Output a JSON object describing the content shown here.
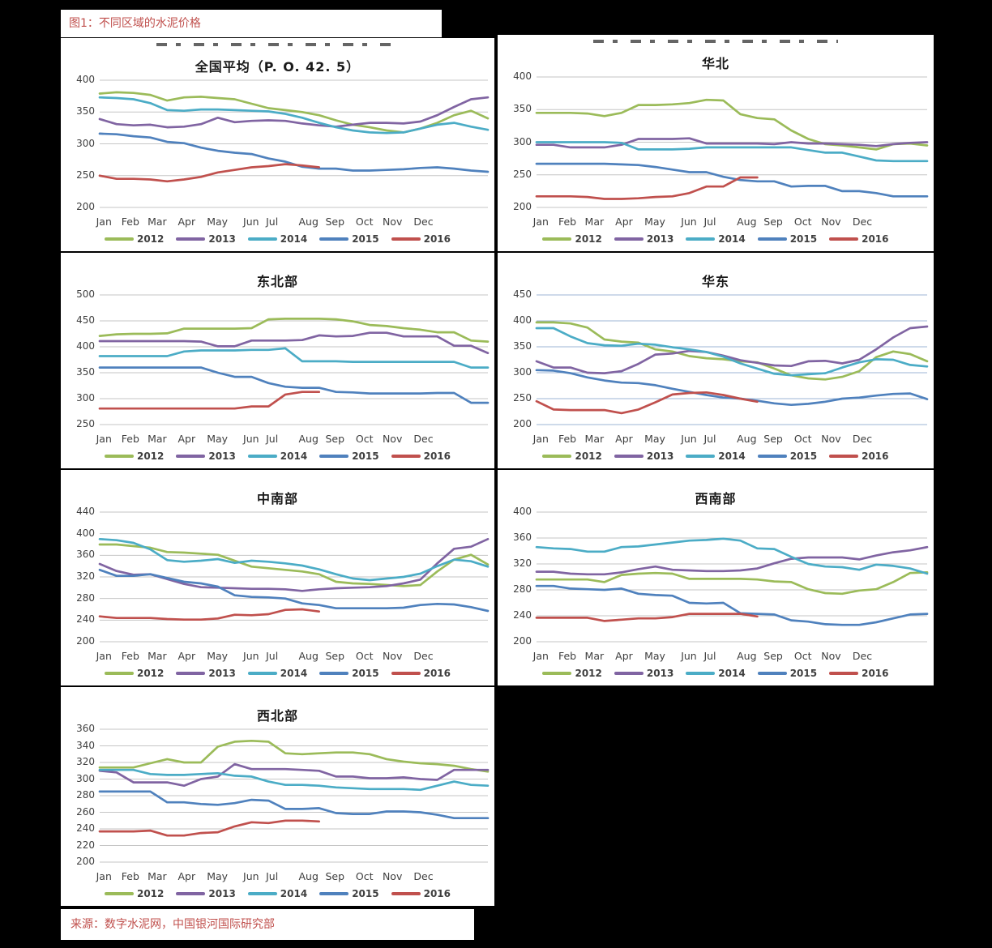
{
  "figure_caption": {
    "label": "图1：",
    "title": "不同区域的水泥价格"
  },
  "source_caption": {
    "label": "来源：",
    "text": "数字水泥网，中国银河国际研究部"
  },
  "months": [
    "Jan",
    "Feb",
    "Mar",
    "Apr",
    "May",
    "Jun",
    "Jul",
    "Aug",
    "Sep",
    "Oct",
    "Nov",
    "Dec"
  ],
  "legend_years": [
    "2012",
    "2013",
    "2014",
    "2015",
    "2016"
  ],
  "colors": {
    "2012": "#9BBB59",
    "2013": "#8064A2",
    "2014": "#4BACC6",
    "2015": "#4F81BD",
    "2016": "#C0504D",
    "grid_gray": "#C6C6C6",
    "grid_blue": "#9EB6D4",
    "caption_red": "#C0504D",
    "axis_text": "#3F3F3F"
  },
  "chart_data": [
    {
      "id": "national-average",
      "type": "line",
      "title": "全国平均（P. O.  42. 5）",
      "clipped_title_remnant": true,
      "grid": "gray",
      "legend_position": "bottom",
      "ylim": [
        200,
        400
      ],
      "yticks": [
        400,
        350,
        300,
        250,
        200
      ],
      "x_unit": "semi-monthly, Jan–Dec",
      "series": [
        {
          "name": "2012",
          "values": [
            379,
            381,
            380,
            377,
            368,
            373,
            374,
            372,
            370,
            363,
            356,
            353,
            350,
            345,
            337,
            330,
            326,
            321,
            318,
            324,
            333,
            345,
            352,
            340
          ]
        },
        {
          "name": "2013",
          "values": [
            339,
            331,
            329,
            330,
            326,
            327,
            331,
            341,
            334,
            336,
            337,
            336,
            332,
            329,
            327,
            330,
            333,
            333,
            332,
            335,
            345,
            358,
            370,
            373
          ]
        },
        {
          "name": "2014",
          "values": [
            373,
            372,
            370,
            364,
            353,
            352,
            354,
            354,
            353,
            352,
            351,
            347,
            341,
            333,
            326,
            321,
            318,
            317,
            318,
            324,
            330,
            333,
            327,
            322
          ]
        },
        {
          "name": "2015",
          "values": [
            316,
            315,
            312,
            310,
            303,
            301,
            294,
            289,
            286,
            284,
            277,
            272,
            264,
            261,
            261,
            258,
            258,
            259,
            260,
            262,
            263,
            261,
            258,
            256
          ]
        },
        {
          "name": "2016",
          "values": [
            250,
            245,
            245,
            244,
            241,
            244,
            248,
            255,
            259,
            263,
            265,
            268,
            266,
            263
          ]
        }
      ]
    },
    {
      "id": "north-china",
      "type": "line",
      "title": "华北",
      "clipped_title_remnant": true,
      "grid": "gray",
      "legend_position": "bottom",
      "ylim": [
        200,
        400
      ],
      "yticks": [
        400,
        350,
        300,
        250,
        200
      ],
      "x_unit": "semi-monthly, Jan–Dec",
      "series": [
        {
          "name": "2012",
          "values": [
            345,
            345,
            345,
            344,
            340,
            345,
            357,
            357,
            358,
            360,
            365,
            364,
            343,
            337,
            335,
            318,
            305,
            297,
            295,
            292,
            289,
            297,
            298,
            295
          ]
        },
        {
          "name": "2013",
          "values": [
            296,
            296,
            292,
            292,
            292,
            296,
            305,
            305,
            305,
            306,
            298,
            298,
            298,
            298,
            297,
            300,
            298,
            298,
            297,
            296,
            294,
            297,
            299,
            300
          ]
        },
        {
          "name": "2014",
          "values": [
            300,
            300,
            300,
            300,
            300,
            299,
            289,
            289,
            289,
            290,
            292,
            292,
            292,
            292,
            292,
            292,
            288,
            284,
            284,
            278,
            272,
            271,
            271,
            271
          ]
        },
        {
          "name": "2015",
          "values": [
            267,
            267,
            267,
            267,
            267,
            266,
            265,
            262,
            258,
            254,
            254,
            247,
            242,
            240,
            240,
            232,
            233,
            233,
            225,
            225,
            222,
            217,
            217,
            217
          ]
        },
        {
          "name": "2016",
          "values": [
            217,
            217,
            217,
            216,
            213,
            213,
            214,
            216,
            217,
            222,
            232,
            232,
            246,
            246
          ]
        }
      ]
    },
    {
      "id": "northeast",
      "type": "line",
      "title": "东北部",
      "clipped_title_remnant": false,
      "grid": "gray",
      "legend_position": "bottom",
      "ylim": [
        250,
        500
      ],
      "yticks": [
        500,
        450,
        400,
        350,
        300,
        250
      ],
      "x_unit": "semi-monthly, Jan–Dec",
      "series": [
        {
          "name": "2012",
          "values": [
            421,
            424,
            425,
            425,
            426,
            435,
            435,
            435,
            435,
            436,
            453,
            454,
            454,
            454,
            453,
            449,
            442,
            440,
            436,
            433,
            428,
            428,
            412,
            410
          ]
        },
        {
          "name": "2013",
          "values": [
            411,
            411,
            411,
            411,
            411,
            411,
            410,
            401,
            401,
            412,
            412,
            412,
            413,
            422,
            420,
            421,
            427,
            427,
            420,
            420,
            420,
            402,
            402,
            388
          ]
        },
        {
          "name": "2014",
          "values": [
            382,
            382,
            382,
            382,
            382,
            391,
            393,
            393,
            393,
            394,
            394,
            397,
            372,
            372,
            372,
            371,
            371,
            371,
            371,
            371,
            371,
            371,
            360,
            360
          ]
        },
        {
          "name": "2015",
          "values": [
            360,
            360,
            360,
            360,
            360,
            360,
            360,
            350,
            342,
            342,
            330,
            323,
            321,
            321,
            313,
            312,
            310,
            310,
            310,
            310,
            311,
            311,
            292,
            292
          ]
        },
        {
          "name": "2016",
          "values": [
            281,
            281,
            281,
            281,
            281,
            281,
            281,
            281,
            281,
            285,
            285,
            308,
            313,
            313
          ]
        }
      ]
    },
    {
      "id": "east-china",
      "type": "line",
      "title": "华东",
      "clipped_title_remnant": false,
      "grid": "blue",
      "legend_position": "bottom",
      "ylim": [
        200,
        450
      ],
      "yticks": [
        450,
        400,
        350,
        300,
        250,
        200
      ],
      "x_unit": "semi-monthly, Jan–Dec",
      "series": [
        {
          "name": "2012",
          "values": [
            397,
            397,
            395,
            387,
            364,
            360,
            358,
            345,
            341,
            332,
            328,
            326,
            322,
            320,
            308,
            295,
            289,
            287,
            292,
            303,
            330,
            341,
            336,
            322
          ]
        },
        {
          "name": "2013",
          "values": [
            322,
            310,
            310,
            300,
            299,
            303,
            317,
            335,
            337,
            342,
            340,
            333,
            324,
            319,
            314,
            313,
            322,
            323,
            318,
            325,
            345,
            368,
            386,
            389
          ]
        },
        {
          "name": "2014",
          "values": [
            386,
            386,
            370,
            357,
            353,
            352,
            356,
            354,
            349,
            345,
            340,
            331,
            318,
            308,
            298,
            295,
            297,
            299,
            310,
            320,
            326,
            325,
            315,
            312
          ]
        },
        {
          "name": "2015",
          "values": [
            305,
            304,
            299,
            291,
            285,
            281,
            280,
            276,
            269,
            263,
            257,
            252,
            250,
            246,
            241,
            238,
            240,
            244,
            250,
            252,
            256,
            259,
            260,
            249
          ]
        },
        {
          "name": "2016",
          "values": [
            245,
            229,
            228,
            228,
            228,
            222,
            229,
            243,
            258,
            261,
            262,
            257,
            250,
            244
          ]
        }
      ]
    },
    {
      "id": "central-south",
      "type": "line",
      "title": "中南部",
      "clipped_title_remnant": false,
      "grid": "gray",
      "legend_position": "bottom",
      "ylim": [
        200,
        440
      ],
      "yticks": [
        440,
        400,
        360,
        320,
        280,
        240,
        200
      ],
      "x_unit": "semi-monthly, Jan–Dec",
      "series": [
        {
          "name": "2012",
          "values": [
            380,
            380,
            377,
            374,
            366,
            365,
            363,
            361,
            350,
            339,
            336,
            333,
            330,
            325,
            311,
            308,
            307,
            305,
            303,
            305,
            330,
            352,
            361,
            343
          ]
        },
        {
          "name": "2013",
          "values": [
            344,
            331,
            324,
            325,
            316,
            307,
            301,
            300,
            299,
            298,
            298,
            297,
            294,
            297,
            299,
            300,
            301,
            303,
            308,
            315,
            345,
            372,
            376,
            390
          ]
        },
        {
          "name": "2014",
          "values": [
            390,
            388,
            383,
            371,
            351,
            348,
            350,
            353,
            346,
            350,
            348,
            345,
            341,
            334,
            325,
            317,
            314,
            317,
            320,
            326,
            340,
            352,
            349,
            339
          ]
        },
        {
          "name": "2015",
          "values": [
            333,
            322,
            322,
            325,
            318,
            311,
            308,
            302,
            286,
            283,
            282,
            280,
            271,
            268,
            262,
            262,
            262,
            262,
            263,
            268,
            270,
            269,
            264,
            257
          ]
        },
        {
          "name": "2016",
          "values": [
            247,
            244,
            244,
            244,
            242,
            241,
            241,
            243,
            250,
            249,
            251,
            259,
            260,
            256
          ]
        }
      ]
    },
    {
      "id": "southwest",
      "type": "line",
      "title": "西南部",
      "clipped_title_remnant": false,
      "grid": "gray",
      "legend_position": "bottom",
      "ylim": [
        200,
        400
      ],
      "yticks": [
        400,
        360,
        320,
        280,
        240,
        200
      ],
      "x_unit": "semi-monthly, Jan–Dec",
      "series": [
        {
          "name": "2012",
          "values": [
            296,
            296,
            296,
            296,
            292,
            303,
            305,
            306,
            305,
            297,
            297,
            297,
            297,
            296,
            293,
            292,
            281,
            275,
            274,
            279,
            281,
            292,
            306,
            307
          ]
        },
        {
          "name": "2013",
          "values": [
            308,
            308,
            305,
            304,
            304,
            307,
            312,
            316,
            311,
            310,
            309,
            309,
            310,
            313,
            321,
            328,
            330,
            330,
            330,
            327,
            333,
            338,
            341,
            346
          ]
        },
        {
          "name": "2014",
          "values": [
            346,
            344,
            343,
            339,
            339,
            346,
            347,
            350,
            353,
            356,
            357,
            359,
            356,
            344,
            343,
            331,
            320,
            316,
            315,
            311,
            319,
            317,
            313,
            305
          ]
        },
        {
          "name": "2015",
          "values": [
            286,
            286,
            282,
            281,
            280,
            282,
            274,
            272,
            271,
            260,
            259,
            260,
            244,
            243,
            242,
            233,
            231,
            227,
            226,
            226,
            230,
            236,
            242,
            243
          ]
        },
        {
          "name": "2016",
          "values": [
            237,
            237,
            237,
            237,
            232,
            234,
            236,
            236,
            238,
            243,
            243,
            243,
            243,
            239
          ]
        }
      ]
    },
    {
      "id": "northwest",
      "type": "line",
      "title": "西北部",
      "clipped_title_remnant": false,
      "grid": "gray",
      "legend_position": "bottom",
      "ylim": [
        200,
        360
      ],
      "yticks": [
        360,
        340,
        320,
        300,
        280,
        260,
        240,
        220,
        200
      ],
      "x_unit": "semi-monthly, Jan–Dec",
      "series": [
        {
          "name": "2012",
          "values": [
            314,
            314,
            314,
            319,
            324,
            320,
            320,
            339,
            345,
            346,
            345,
            331,
            330,
            331,
            332,
            332,
            330,
            324,
            321,
            319,
            318,
            316,
            312,
            309
          ]
        },
        {
          "name": "2013",
          "values": [
            310,
            308,
            296,
            296,
            296,
            292,
            300,
            303,
            318,
            312,
            312,
            312,
            311,
            310,
            303,
            303,
            301,
            301,
            302,
            300,
            299,
            311,
            311,
            311
          ]
        },
        {
          "name": "2014",
          "values": [
            311,
            311,
            311,
            306,
            305,
            305,
            306,
            307,
            304,
            303,
            297,
            293,
            293,
            292,
            290,
            289,
            288,
            288,
            288,
            287,
            292,
            297,
            293,
            292
          ]
        },
        {
          "name": "2015",
          "values": [
            285,
            285,
            285,
            285,
            272,
            272,
            270,
            269,
            271,
            275,
            274,
            264,
            264,
            265,
            259,
            258,
            258,
            261,
            261,
            260,
            257,
            253,
            253,
            253
          ]
        },
        {
          "name": "2016",
          "values": [
            237,
            237,
            237,
            238,
            232,
            232,
            235,
            236,
            243,
            248,
            247,
            250,
            250,
            249
          ]
        }
      ]
    }
  ]
}
